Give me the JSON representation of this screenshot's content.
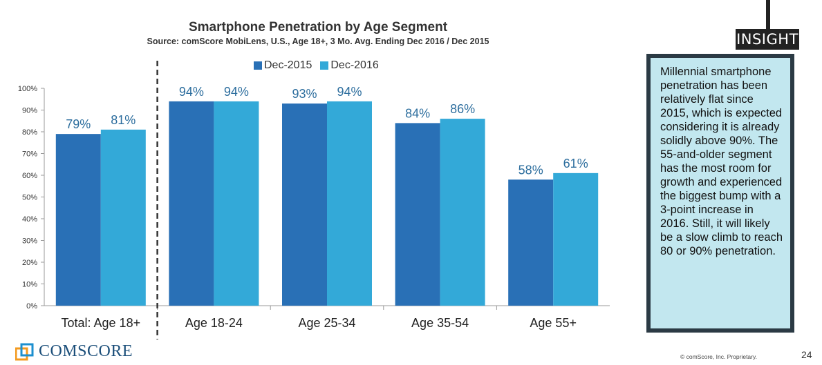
{
  "chart_data": {
    "type": "bar",
    "title": "Smartphone Penetration by Age Segment",
    "subtitle": "Source: comScore MobiLens, U.S., Age 18+, 3 Mo. Avg. Ending Dec 2016 / Dec 2015",
    "categories": [
      "Total: Age 18+",
      "Age 18-24",
      "Age 25-34",
      "Age 35-54",
      "Age 55+"
    ],
    "series": [
      {
        "name": "Dec-2015",
        "values": [
          79,
          94,
          93,
          84,
          58
        ],
        "labels": [
          "79%",
          "94%",
          "93%",
          "84%",
          "58%"
        ],
        "color": "#2970b6"
      },
      {
        "name": "Dec-2016",
        "values": [
          81,
          94,
          94,
          86,
          61
        ],
        "labels": [
          "81%",
          "94%",
          "94%",
          "86%",
          "61%"
        ],
        "color": "#33a9d8"
      }
    ],
    "yticks": [
      "0%",
      "10%",
      "20%",
      "30%",
      "40%",
      "50%",
      "60%",
      "70%",
      "80%",
      "90%",
      "100%"
    ],
    "ylim": [
      0,
      100
    ],
    "xlabel": "",
    "ylabel": "",
    "legend_position": "top",
    "label_color": "#2d6e9e"
  },
  "insight": {
    "tag": "INSIGHT",
    "text": "Millennial smartphone penetration has been relatively flat since 2015, which is expected considering it is already solidly above 90%. The 55-and-older segment has the most room for growth and experienced the biggest bump with a 3-point increase in 2016. Still, it will likely be a slow climb to reach 80 or 90% penetration."
  },
  "footer": {
    "logo_text": "COMSCORE",
    "copyright": "© comScore, Inc. Proprietary.",
    "page_number": "24"
  }
}
